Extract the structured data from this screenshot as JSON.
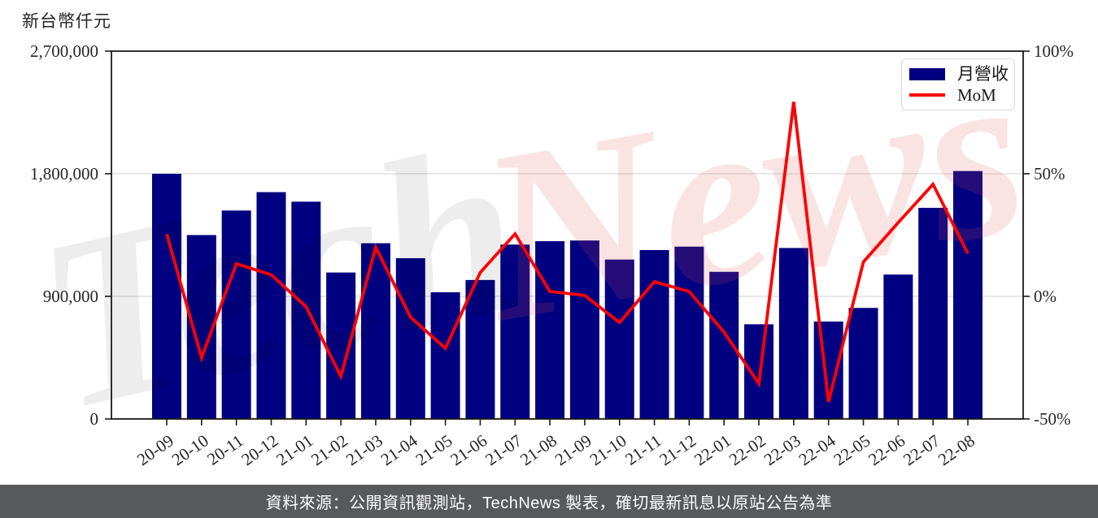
{
  "page": {
    "title": "新台幣仟元",
    "footer_text": "資料來源：公開資訊觀測站，TechNews 製表，確切最新訊息以原站公告為準",
    "watermark": {
      "part1": "Tech",
      "part2": "News"
    }
  },
  "legend": {
    "position": "top-right",
    "items": [
      {
        "label": "月營收",
        "marker": "bar",
        "color": "#000080"
      },
      {
        "label": "MoM",
        "marker": "line",
        "color": "#ff0000"
      }
    ]
  },
  "style": {
    "bar_color": "#000080",
    "line_color": "#ff0000",
    "grid_color": "#d9d9d9",
    "axis_color": "#1a1a1a",
    "text_color": "#262626",
    "footer_bg": "#58595b",
    "watermark_gray": "#000000",
    "watermark_pink": "#e05252"
  },
  "chart_data": {
    "type": "bar",
    "title": "新台幣仟元",
    "categories": [
      "20-09",
      "20-10",
      "20-11",
      "20-12",
      "21-01",
      "21-02",
      "21-03",
      "21-04",
      "21-05",
      "21-06",
      "21-07",
      "21-08",
      "21-09",
      "21-10",
      "21-11",
      "21-12",
      "22-01",
      "22-02",
      "22-03",
      "22-04",
      "22-05",
      "22-06",
      "22-07",
      "22-08"
    ],
    "series": [
      {
        "name": "月營收",
        "type": "bar",
        "axis": "left",
        "color": "#000080",
        "unit": "新台幣仟元",
        "values": [
          1800000,
          1350000,
          1530000,
          1665000,
          1595000,
          1075000,
          1290000,
          1180000,
          930000,
          1020000,
          1280000,
          1305000,
          1310000,
          1170000,
          1240000,
          1265000,
          1080000,
          695000,
          1255000,
          715000,
          815000,
          1060000,
          1550000,
          1820000
        ]
      },
      {
        "name": "MoM",
        "type": "line",
        "axis": "right",
        "color": "#ff0000",
        "unit": "%",
        "values": [
          25.4,
          -25.0,
          13.3,
          8.8,
          -4.2,
          -32.6,
          20.0,
          -8.5,
          -21.2,
          9.7,
          25.5,
          2.0,
          0.4,
          -10.7,
          6.0,
          2.0,
          -14.6,
          -35.6,
          79.3,
          -43.0,
          14.0,
          30.1,
          45.7,
          17.5
        ]
      }
    ],
    "left_axis": {
      "label": "新台幣仟元",
      "range": [
        0,
        2700000
      ],
      "tick_values": [
        0,
        900000,
        1800000,
        2700000
      ],
      "tick_labels": [
        "0",
        "900,000",
        "1,800,000",
        "2,700,000"
      ]
    },
    "right_axis": {
      "range": [
        -50,
        100
      ],
      "tick_values": [
        -50,
        0,
        50,
        100
      ],
      "tick_labels": [
        "-50%",
        "0%",
        "50%",
        "100%"
      ]
    },
    "grid": "horizontal",
    "legend_position": "top-right",
    "x_tick_rotation": 35
  }
}
